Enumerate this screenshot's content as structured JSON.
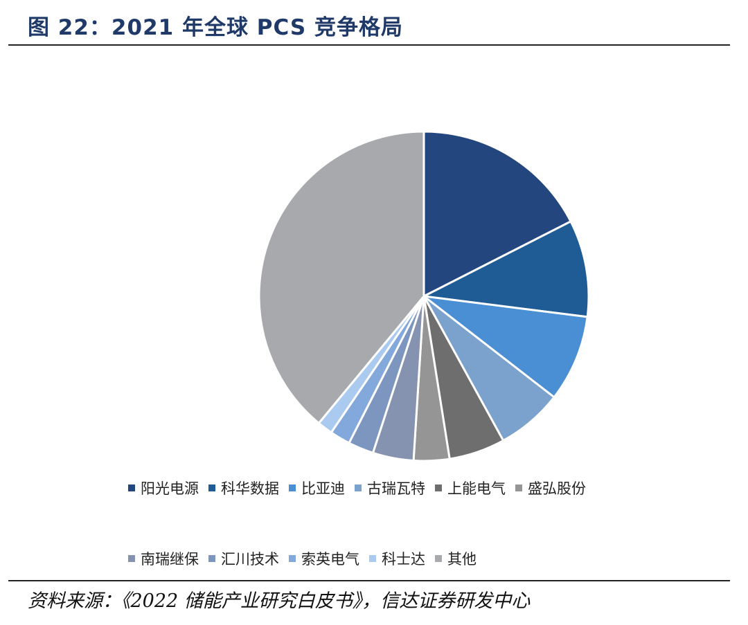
{
  "header": {
    "title": "图 22：2021 年全球 PCS 竞争格局"
  },
  "chart_data": {
    "type": "pie",
    "title": "2021 年全球 PCS 竞争格局",
    "start_angle": "12 o'clock",
    "direction": "clockwise",
    "slices": [
      {
        "label": "阳光电源",
        "value": 17.5,
        "color": "#24467f"
      },
      {
        "label": "科华数据",
        "value": 9.5,
        "color": "#1f5c96"
      },
      {
        "label": "比亚迪",
        "value": 8.5,
        "color": "#4a8fd4"
      },
      {
        "label": "古瑞瓦特",
        "value": 6.5,
        "color": "#7ba1cd"
      },
      {
        "label": "上能电气",
        "value": 5.5,
        "color": "#6e6e6e"
      },
      {
        "label": "盛弘股份",
        "value": 3.5,
        "color": "#959595"
      },
      {
        "label": "南瑞继保",
        "value": 4.0,
        "color": "#8592b0"
      },
      {
        "label": "汇川技术",
        "value": 2.5,
        "color": "#7d96bf"
      },
      {
        "label": "索英电气",
        "value": 2.0,
        "color": "#82a8dc"
      },
      {
        "label": "科士达",
        "value": 1.5,
        "color": "#aacaef"
      },
      {
        "label": "其他",
        "value": 39.0,
        "color": "#a8a9ad"
      }
    ],
    "legend_position": "bottom"
  },
  "footer": {
    "source": "资料来源：《2022 储能产业研究白皮书》，信达证券研发中心"
  }
}
